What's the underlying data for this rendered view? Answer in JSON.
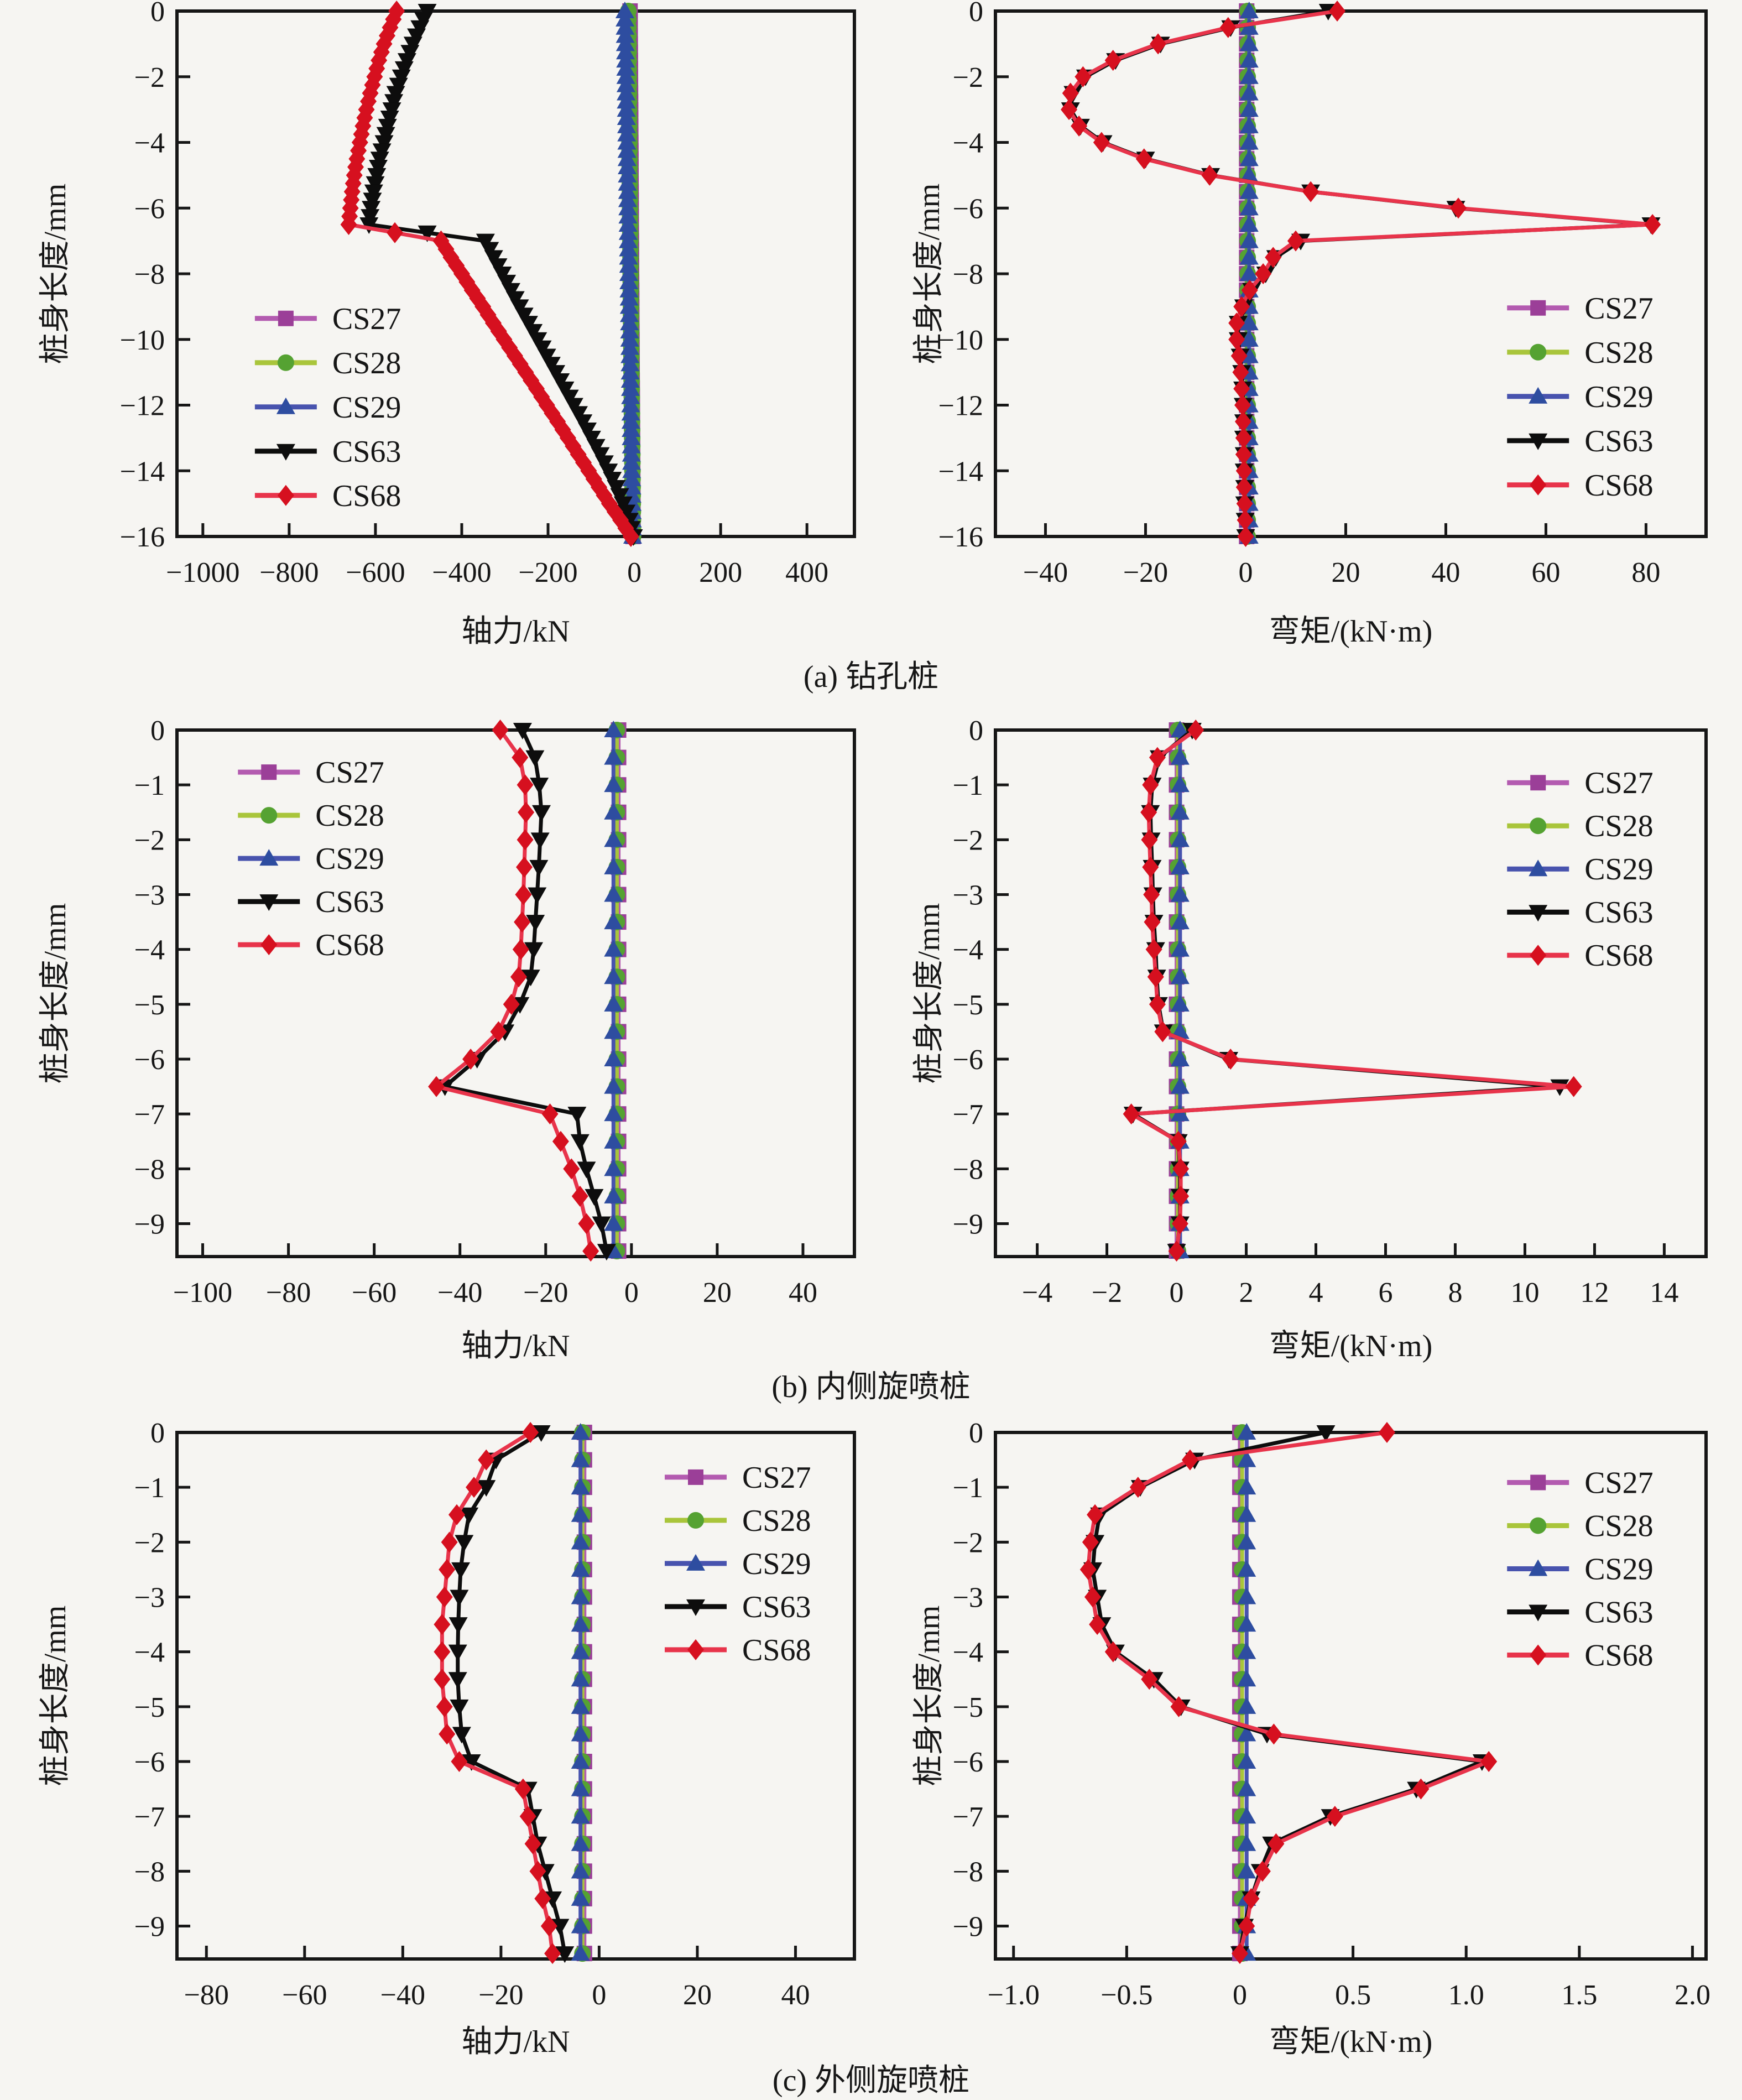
{
  "page": {
    "background": "#f6f5f2",
    "text_color": "#161616"
  },
  "figure": {
    "captions": {
      "a": "(a) 钻孔桩",
      "b": "(b) 内侧旋喷桩",
      "c": "(c) 外侧旋喷桩"
    },
    "y_axis_label": "桩身长度/mm",
    "axial_label": "轴力/kN",
    "moment_label": "弯矩/(kN·m)"
  },
  "series_defs": [
    {
      "name": "CS27",
      "line": "#b35bb0",
      "fill": "#9b3f98",
      "marker": "square"
    },
    {
      "name": "CS28",
      "line": "#a9c53b",
      "fill": "#55a232",
      "marker": "circle"
    },
    {
      "name": "CS29",
      "line": "#4853ae",
      "fill": "#2e4da0",
      "marker": "triangle-up"
    },
    {
      "name": "CS63",
      "line": "#0d0d0d",
      "fill": "#0d0d0d",
      "marker": "triangle-down"
    },
    {
      "name": "CS68",
      "line": "#e8344b",
      "fill": "#d6101f",
      "marker": "diamond"
    }
  ],
  "chart_data": [
    {
      "id": "a-left",
      "type": "line",
      "title": "",
      "xlabel": "轴力/kN",
      "ylabel": "桩身长度/mm",
      "xlim": [
        -1060,
        510
      ],
      "ylim": [
        0,
        -16
      ],
      "grid": false,
      "xticks": [
        -1000,
        -800,
        -600,
        -400,
        -200,
        0,
        200,
        400
      ],
      "xtick_labels": [
        "-1000",
        "-800",
        "-600",
        "-400",
        "-200",
        "0",
        "200",
        "400"
      ],
      "yticks": [
        0,
        -2,
        -4,
        -6,
        -8,
        -10,
        -12,
        -14,
        -16
      ],
      "ytick_labels": [
        "0",
        "-2",
        "-4",
        "-6",
        "-8",
        "-10",
        "-12",
        "-14",
        "-16"
      ],
      "legend": {
        "position": "inside-left-middle",
        "fx": 0.115,
        "fy": 0.585,
        "dy": 80
      },
      "marker_subdivide": 2,
      "depths": [
        0,
        -0.5,
        -1,
        -1.5,
        -2,
        -2.5,
        -3,
        -3.5,
        -4,
        -4.5,
        -5,
        -5.5,
        -6,
        -6.5,
        -7,
        -7.5,
        -8,
        -8.5,
        -9,
        -9.5,
        -10,
        -10.5,
        -11,
        -11.5,
        -12,
        -12.5,
        -13,
        -13.5,
        -14,
        -14.5,
        -15,
        -15.5,
        -16
      ],
      "series": [
        {
          "name": "CS27",
          "linear": [
            -10,
            -3
          ]
        },
        {
          "name": "CS28",
          "linear": [
            -14,
            -3
          ]
        },
        {
          "name": "CS29",
          "linear": [
            -22,
            -4
          ]
        },
        {
          "name": "CS63",
          "values": [
            -480,
            -497,
            -513,
            -527,
            -540,
            -553,
            -562,
            -572,
            -580,
            -590,
            -597,
            -604,
            -610,
            -615,
            -345,
            -326,
            -306,
            -286,
            -266,
            -245,
            -224,
            -203,
            -182,
            -161,
            -140,
            -119,
            -99,
            -79,
            -60,
            -42,
            -26,
            -12,
            -2
          ]
        },
        {
          "name": "CS68",
          "values": [
            -551,
            -566,
            -580,
            -592,
            -602,
            -612,
            -621,
            -629,
            -636,
            -643,
            -649,
            -654,
            -658,
            -662,
            -448,
            -425,
            -400,
            -376,
            -351,
            -327,
            -302,
            -277,
            -252,
            -227,
            -203,
            -178,
            -154,
            -130,
            -106,
            -82,
            -58,
            -32,
            -8
          ]
        }
      ]
    },
    {
      "id": "a-right",
      "type": "line",
      "title": "",
      "xlabel": "弯矩/(kN·m)",
      "ylabel": "桩身长度/mm",
      "xlim": [
        -50,
        92
      ],
      "ylim": [
        0,
        -16
      ],
      "grid": false,
      "xticks": [
        -40,
        -20,
        0,
        20,
        40,
        60,
        80
      ],
      "xtick_labels": [
        "-40",
        "-20",
        "0",
        "20",
        "40",
        "60",
        "80"
      ],
      "yticks": [
        0,
        -2,
        -4,
        -6,
        -8,
        -10,
        -12,
        -14,
        -16
      ],
      "ytick_labels": [
        "0",
        "-2",
        "-4",
        "-6",
        "-8",
        "-10",
        "-12",
        "-14",
        "-16"
      ],
      "legend": {
        "position": "inside-right-lower",
        "fx": 0.72,
        "fy": 0.565,
        "dy": 80
      },
      "marker_subdivide": 1,
      "depths": [
        0,
        -0.5,
        -1,
        -1.5,
        -2,
        -2.5,
        -3,
        -3.5,
        -4,
        -4.5,
        -5,
        -5.5,
        -6,
        -6.5,
        -7,
        -7.5,
        -8,
        -8.5,
        -9,
        -9.5,
        -10,
        -10.5,
        -11,
        -11.5,
        -12,
        -12.5,
        -13,
        -13.5,
        -14,
        -14.5,
        -15,
        -15.5,
        -16
      ],
      "series": [
        {
          "name": "CS27",
          "const": 0.2
        },
        {
          "name": "CS28",
          "const": 0.4
        },
        {
          "name": "CS29",
          "const": 0.7
        },
        {
          "name": "CS63",
          "values": [
            16.5,
            -3,
            -17,
            -26,
            -32,
            -34.5,
            -35,
            -33,
            -28.5,
            -20,
            -7,
            13,
            42,
            81,
            11,
            6,
            4,
            1.2,
            -0.4,
            -1.5,
            -1.5,
            -1.1,
            -0.8,
            -0.6,
            -0.5,
            -0.4,
            -0.4,
            -0.3,
            -0.3,
            -0.2,
            -0.2,
            -0.1,
            0
          ]
        },
        {
          "name": "CS68",
          "values": [
            18.3,
            -3.5,
            -17.5,
            -26.5,
            -32.5,
            -35,
            -35.3,
            -33.3,
            -28.8,
            -20.3,
            -7.2,
            13,
            42.5,
            81.3,
            10,
            5.5,
            3.5,
            0.8,
            -0.8,
            -1.8,
            -1.8,
            -1.3,
            -1,
            -0.8,
            -0.6,
            -0.5,
            -0.4,
            -0.4,
            -0.3,
            -0.3,
            -0.2,
            -0.1,
            0
          ]
        }
      ]
    },
    {
      "id": "b-left",
      "type": "line",
      "title": "",
      "xlabel": "轴力/kN",
      "ylabel": "桩身长度/mm",
      "xlim": [
        -106,
        52
      ],
      "ylim": [
        0,
        -9.6
      ],
      "grid": false,
      "xticks": [
        -100,
        -80,
        -60,
        -40,
        -20,
        0,
        20,
        40
      ],
      "xtick_labels": [
        "-100",
        "-80",
        "-60",
        "-40",
        "-20",
        "0",
        "20",
        "40"
      ],
      "yticks": [
        0,
        -1,
        -2,
        -3,
        -4,
        -5,
        -6,
        -7,
        -8,
        -9
      ],
      "ytick_labels": [
        "0",
        "-1",
        "-2",
        "-3",
        "-4",
        "-5",
        "-6",
        "-7",
        "-8",
        "-9"
      ],
      "legend": {
        "position": "inside-left-top",
        "fx": 0.09,
        "fy": 0.08,
        "dy": 78
      },
      "marker_subdivide": 1,
      "depths": [
        0,
        -0.5,
        -1,
        -1.5,
        -2,
        -2.5,
        -3,
        -3.5,
        -4,
        -4.5,
        -5,
        -5.5,
        -6,
        -6.5,
        -7,
        -7.5,
        -8,
        -8.5,
        -9,
        -9.5
      ],
      "series": [
        {
          "name": "CS27",
          "const": -3
        },
        {
          "name": "CS28",
          "const": -3.4
        },
        {
          "name": "CS29",
          "const": -4.2
        },
        {
          "name": "CS63",
          "values": [
            -25.4,
            -22.5,
            -21.5,
            -21,
            -21.3,
            -21.6,
            -22,
            -22.4,
            -22.8,
            -23.5,
            -26,
            -29.5,
            -36,
            -43.5,
            -12.7,
            -12,
            -10.5,
            -8.7,
            -7,
            -5.8
          ]
        },
        {
          "name": "CS68",
          "values": [
            -30.6,
            -26,
            -24.8,
            -24.6,
            -24.8,
            -25,
            -25.2,
            -25.5,
            -25.8,
            -26.3,
            -28,
            -31,
            -37.5,
            -45.5,
            -19,
            -16.5,
            -14,
            -12,
            -10.5,
            -9.5
          ]
        }
      ]
    },
    {
      "id": "b-right",
      "type": "line",
      "title": "",
      "xlabel": "弯矩/(kN·m)",
      "ylabel": "桩身长度/mm",
      "xlim": [
        -5.2,
        15.2
      ],
      "ylim": [
        0,
        -9.6
      ],
      "grid": false,
      "xticks": [
        -4,
        -2,
        0,
        2,
        4,
        6,
        8,
        10,
        12,
        14
      ],
      "xtick_labels": [
        "-4",
        "-2",
        "0",
        "2",
        "4",
        "6",
        "8",
        "10",
        "12",
        "14"
      ],
      "yticks": [
        0,
        -1,
        -2,
        -3,
        -4,
        -5,
        -6,
        -7,
        -8,
        -9
      ],
      "ytick_labels": [
        "0",
        "-1",
        "-2",
        "-3",
        "-4",
        "-5",
        "-6",
        "-7",
        "-8",
        "-9"
      ],
      "legend": {
        "position": "inside-right-top",
        "fx": 0.72,
        "fy": 0.1,
        "dy": 78
      },
      "marker_subdivide": 1,
      "depths": [
        0,
        -0.5,
        -1,
        -1.5,
        -2,
        -2.5,
        -3,
        -3.5,
        -4,
        -4.5,
        -5,
        -5.5,
        -6,
        -6.5,
        -7,
        -7.5,
        -8,
        -8.5,
        -9,
        -9.5
      ],
      "series": [
        {
          "name": "CS27",
          "const": 0
        },
        {
          "name": "CS28",
          "const": 0.04
        },
        {
          "name": "CS29",
          "const": 0.1
        },
        {
          "name": "CS63",
          "values": [
            0.45,
            -0.5,
            -0.7,
            -0.75,
            -0.73,
            -0.7,
            -0.68,
            -0.65,
            -0.6,
            -0.57,
            -0.52,
            -0.38,
            1.5,
            11,
            -1.25,
            0.05,
            0.1,
            0.1,
            0.1,
            0
          ]
        },
        {
          "name": "CS68",
          "values": [
            0.55,
            -0.55,
            -0.75,
            -0.8,
            -0.78,
            -0.75,
            -0.72,
            -0.7,
            -0.65,
            -0.6,
            -0.55,
            -0.4,
            1.55,
            11.4,
            -1.3,
            0.05,
            0.12,
            0.12,
            0.1,
            0
          ]
        }
      ]
    },
    {
      "id": "c-left",
      "type": "line",
      "title": "",
      "xlabel": "轴力/kN",
      "ylabel": "桩身长度/mm",
      "xlim": [
        -86,
        52
      ],
      "ylim": [
        0,
        -9.6
      ],
      "grid": false,
      "xticks": [
        -80,
        -60,
        -40,
        -20,
        0,
        20,
        40
      ],
      "xtick_labels": [
        "-80",
        "-60",
        "-40",
        "-20",
        "0",
        "20",
        "40"
      ],
      "yticks": [
        0,
        -1,
        -2,
        -3,
        -4,
        -5,
        -6,
        -7,
        -8,
        -9
      ],
      "ytick_labels": [
        "0",
        "-1",
        "-2",
        "-3",
        "-4",
        "-5",
        "-6",
        "-7",
        "-8",
        "-9"
      ],
      "legend": {
        "position": "inside-right-top",
        "fx": 0.72,
        "fy": 0.085,
        "dy": 78
      },
      "marker_subdivide": 1,
      "depths": [
        0,
        -0.5,
        -1,
        -1.5,
        -2,
        -2.5,
        -3,
        -3.5,
        -4,
        -4.5,
        -5,
        -5.5,
        -6,
        -6.5,
        -7,
        -7.5,
        -8,
        -8.5,
        -9,
        -9.5
      ],
      "series": [
        {
          "name": "CS27",
          "const": -3
        },
        {
          "name": "CS28",
          "const": -3.4
        },
        {
          "name": "CS29",
          "const": -3.8
        },
        {
          "name": "CS63",
          "values": [
            -11.8,
            -21,
            -23,
            -26.5,
            -27.5,
            -28.2,
            -28.5,
            -28.7,
            -28.8,
            -28.8,
            -28.5,
            -28,
            -26,
            -14.5,
            -13.5,
            -12.5,
            -11,
            -9.5,
            -8,
            -7
          ]
        },
        {
          "name": "CS68",
          "values": [
            -14,
            -23,
            -25.5,
            -29,
            -30.5,
            -31,
            -31.5,
            -32,
            -32,
            -32,
            -31.5,
            -31,
            -28.5,
            -15.5,
            -14.5,
            -13.5,
            -12.5,
            -11.5,
            -10.2,
            -9.5
          ]
        }
      ]
    },
    {
      "id": "c-right",
      "type": "line",
      "title": "",
      "xlabel": "弯矩/(kN·m)",
      "ylabel": "桩身长度/mm",
      "xlim": [
        -1.08,
        2.06
      ],
      "ylim": [
        0,
        -9.6
      ],
      "grid": false,
      "xticks": [
        -1.0,
        -0.5,
        0,
        0.5,
        1.0,
        1.5,
        2.0
      ],
      "xtick_labels": [
        "-1.0",
        "-0.5",
        "0",
        "0.5",
        "1.0",
        "1.5",
        "2.0"
      ],
      "yticks": [
        0,
        -1,
        -2,
        -3,
        -4,
        -5,
        -6,
        -7,
        -8,
        -9
      ],
      "ytick_labels": [
        "0",
        "-1",
        "-2",
        "-3",
        "-4",
        "-5",
        "-6",
        "-7",
        "-8",
        "-9"
      ],
      "legend": {
        "position": "inside-right-top",
        "fx": 0.72,
        "fy": 0.095,
        "dy": 78
      },
      "marker_subdivide": 1,
      "depths": [
        0,
        -0.5,
        -1,
        -1.5,
        -2,
        -2.5,
        -3,
        -3.5,
        -4,
        -4.5,
        -5,
        -5.5,
        -6,
        -6.5,
        -7,
        -7.5,
        -8,
        -8.5,
        -9,
        -9.5
      ],
      "series": [
        {
          "name": "CS27",
          "const": 0
        },
        {
          "name": "CS28",
          "const": 0.01
        },
        {
          "name": "CS29",
          "const": 0.03
        },
        {
          "name": "CS63",
          "values": [
            0.38,
            -0.2,
            -0.44,
            -0.62,
            -0.64,
            -0.65,
            -0.63,
            -0.61,
            -0.55,
            -0.38,
            -0.26,
            0.12,
            1.07,
            0.78,
            0.4,
            0.14,
            0.09,
            0.05,
            0.02,
            0
          ]
        },
        {
          "name": "CS68",
          "values": [
            0.65,
            -0.22,
            -0.45,
            -0.64,
            -0.66,
            -0.67,
            -0.65,
            -0.63,
            -0.56,
            -0.4,
            -0.27,
            0.15,
            1.1,
            0.8,
            0.42,
            0.16,
            0.1,
            0.05,
            0.03,
            0
          ]
        }
      ]
    }
  ]
}
